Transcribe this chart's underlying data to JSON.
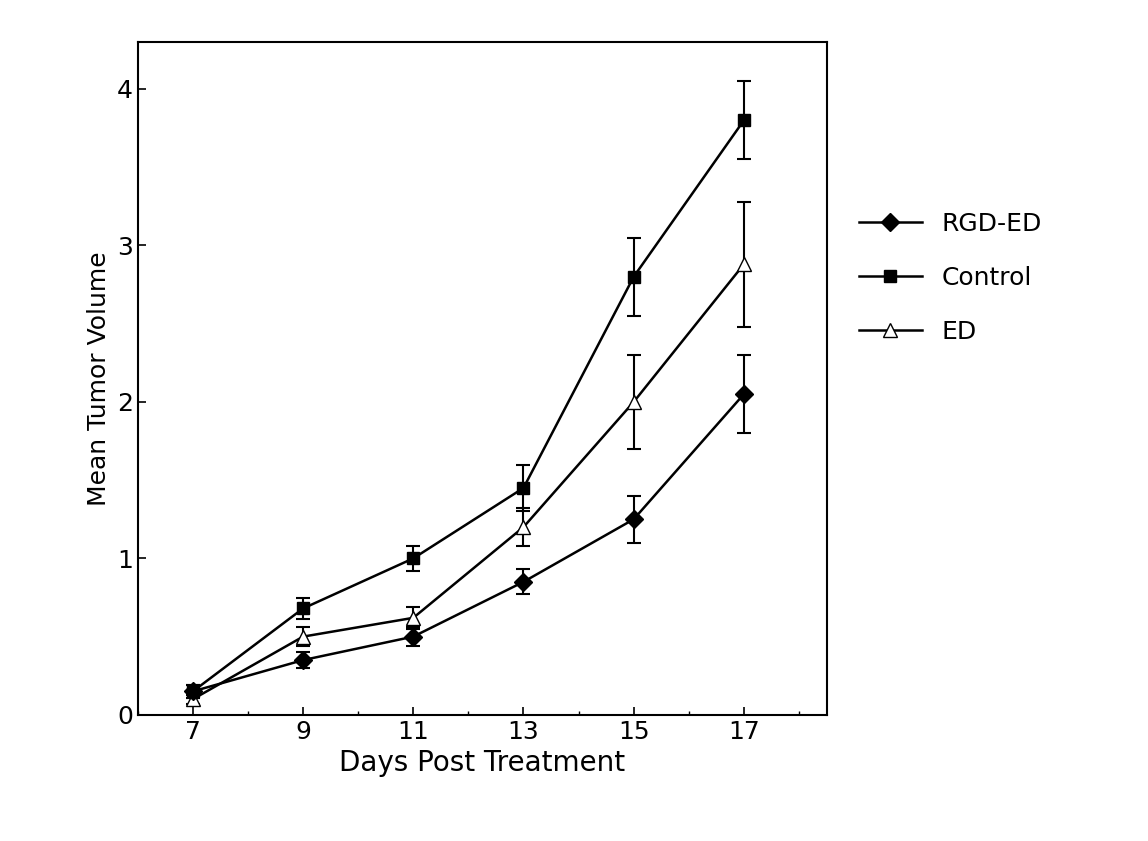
{
  "x": [
    7,
    9,
    11,
    13,
    15,
    17
  ],
  "rgd_ed": [
    0.15,
    0.35,
    0.5,
    0.85,
    1.25,
    2.05
  ],
  "rgd_ed_err": [
    0.04,
    0.05,
    0.06,
    0.08,
    0.15,
    0.25
  ],
  "control": [
    0.15,
    0.68,
    1.0,
    1.45,
    2.8,
    3.8
  ],
  "control_err": [
    0.04,
    0.07,
    0.08,
    0.15,
    0.25,
    0.25
  ],
  "ed": [
    0.1,
    0.5,
    0.62,
    1.2,
    2.0,
    2.88
  ],
  "ed_err": [
    0.03,
    0.06,
    0.07,
    0.12,
    0.3,
    0.4
  ],
  "xlabel": "Days Post Treatment",
  "ylabel": "Mean Tumor Volume",
  "xticks": [
    7,
    9,
    11,
    13,
    15,
    17
  ],
  "yticks": [
    0,
    1,
    2,
    3,
    4
  ],
  "ylim": [
    0,
    4.3
  ],
  "xlim": [
    6,
    18.5
  ],
  "legend_labels": [
    "RGD-ED",
    "Control",
    "ED"
  ],
  "line_color": "#000000",
  "bg_color": "#ffffff",
  "fig_bg_color": "#ffffff",
  "xlabel_fontsize": 20,
  "ylabel_fontsize": 18,
  "tick_fontsize": 18,
  "legend_fontsize": 18
}
